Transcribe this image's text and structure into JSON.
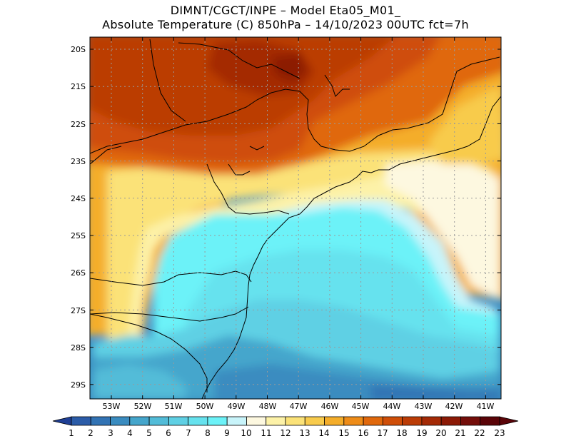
{
  "header": {
    "line1": "DIMNT/CGCT/INPE –  Model Eta05_M01_",
    "line2": "Absolute Temperature (C) 850hPa –  14/10/2023 00UTC fct=7h"
  },
  "map": {
    "lat_labels": [
      "20S",
      "21S",
      "22S",
      "23S",
      "24S",
      "25S",
      "26S",
      "27S",
      "28S",
      "29S"
    ],
    "lon_labels": [
      "53W",
      "52W",
      "51W",
      "50W",
      "49W",
      "48W",
      "47W",
      "46W",
      "45W",
      "44W",
      "43W",
      "42W",
      "41W"
    ]
  },
  "colorbar": {
    "labels": [
      "1",
      "2",
      "3",
      "4",
      "5",
      "6",
      "7",
      "8",
      "9",
      "10",
      "11",
      "12",
      "13",
      "14",
      "15",
      "16",
      "17",
      "18",
      "19",
      "20",
      "21",
      "22",
      "23"
    ],
    "colors": [
      "#1f3f95",
      "#2b5ca8",
      "#3273b4",
      "#3a8cc0",
      "#45a6cc",
      "#52bcd8",
      "#5fd0e4",
      "#66e2ee",
      "#6cf2f8",
      "#c8f4fa",
      "#fdf8e0",
      "#fdf2a8",
      "#fbe278",
      "#f8cb4c",
      "#f4ad2a",
      "#ee8c18",
      "#e0680c",
      "#cf4e08",
      "#bb3c06",
      "#a42a06",
      "#8c1a06",
      "#740e0a",
      "#5a0408"
    ]
  }
}
